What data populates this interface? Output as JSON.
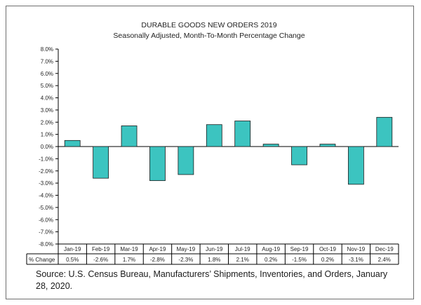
{
  "chart_data": {
    "type": "bar",
    "title": "DURABLE GOODS NEW ORDERS 2019",
    "subtitle": "Seasonally Adjusted,   Month-To-Month  Percentage Change",
    "categories": [
      "Jan-19",
      "Feb-19",
      "Mar-19",
      "Apr-19",
      "May-19",
      "Jun-19",
      "Jul-19",
      "Aug-19",
      "Sep-19",
      "Oct-19",
      "Nov-19",
      "Dec-19"
    ],
    "values": [
      0.5,
      -2.6,
      1.7,
      -2.8,
      -2.3,
      1.8,
      2.1,
      0.2,
      -1.5,
      0.2,
      -3.1,
      2.4
    ],
    "value_labels": [
      "0.5%",
      "-2.6%",
      "1.7%",
      "-2.8%",
      "-2.3%",
      "1.8%",
      "2.1%",
      "0.2%",
      "-1.5%",
      "0.2%",
      "-3.1%",
      "2.4%"
    ],
    "series_name": "% Change",
    "ylim": [
      -8.0,
      8.0
    ],
    "ytick_step": 1.0,
    "ytick_labels": [
      "8.0%",
      "7.0%",
      "6.0%",
      "5.0%",
      "4.0%",
      "3.0%",
      "2.0%",
      "1.0%",
      "0.0%",
      "-1.0%",
      "-2.0%",
      "-3.0%",
      "-4.0%",
      "-5.0%",
      "-6.0%",
      "-7.0%",
      "-8.0%"
    ],
    "xlabel": "",
    "ylabel": "",
    "grid": false,
    "bar_color": "#3cc4c0",
    "bar_edge_color": "#1b1b1b"
  },
  "source_text": "Source: U.S. Census Bureau, Manufacturers’ Shipments, Inventories, and Orders, January 28, 2020."
}
